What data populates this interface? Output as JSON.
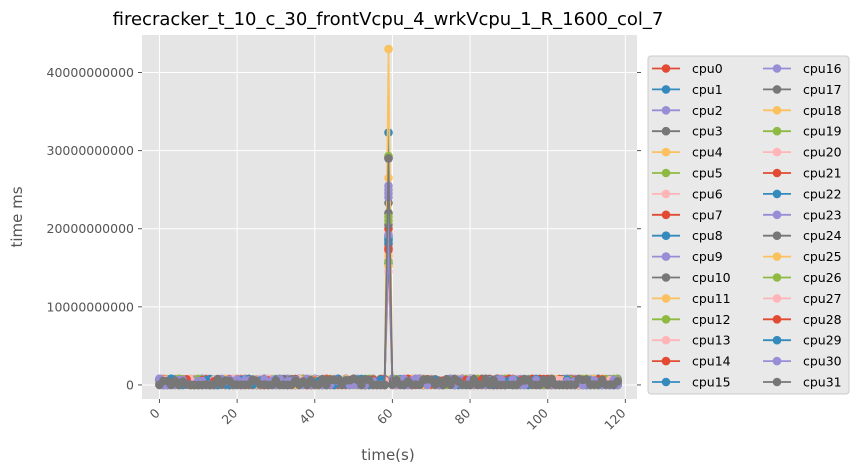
{
  "chart_data": {
    "type": "line",
    "title": "firecracker_t_10_c_30_frontVcpu_4_wrkVcpu_1_R_1600_col_7",
    "xlabel": "time(s)",
    "ylabel": "time ms",
    "xlim": [
      -4.5,
      123
    ],
    "ylim": [
      -1800000000,
      44800000000
    ],
    "x_ticks": [
      0,
      20,
      40,
      60,
      80,
      100,
      120
    ],
    "x_tick_labels": [
      "0",
      "20",
      "40",
      "60",
      "80",
      "100",
      "120"
    ],
    "y_ticks": [
      0,
      10000000000,
      20000000000,
      30000000000,
      40000000000
    ],
    "y_tick_labels": [
      "0",
      "10000000000",
      "20000000000",
      "30000000000",
      "40000000000"
    ],
    "x_tick_rotation": 45,
    "grid": true,
    "legend_position": "outside-right",
    "legend_columns": 2,
    "spike_x": 59,
    "x_range": [
      0,
      118
    ],
    "baseline_level_max": 800000000,
    "colors": [
      "#E24A33",
      "#348ABD",
      "#988ED5",
      "#777777",
      "#FBC15E",
      "#8EBA42",
      "#FFB5B8"
    ],
    "series": [
      {
        "name": "cpu0",
        "spike": 29000000000
      },
      {
        "name": "cpu1",
        "spike": 32300000000
      },
      {
        "name": "cpu2",
        "spike": 25000000000
      },
      {
        "name": "cpu3",
        "spike": 23300000000
      },
      {
        "name": "cpu4",
        "spike": 43000000000
      },
      {
        "name": "cpu5",
        "spike": 29300000000
      },
      {
        "name": "cpu6",
        "spike": 19500000000
      },
      {
        "name": "cpu7",
        "spike": 20000000000
      },
      {
        "name": "cpu8",
        "spike": 18500000000
      },
      {
        "name": "cpu9",
        "spike": 25500000000
      },
      {
        "name": "cpu10",
        "spike": 22000000000
      },
      {
        "name": "cpu11",
        "spike": 26500000000
      },
      {
        "name": "cpu12",
        "spike": 21500000000
      },
      {
        "name": "cpu13",
        "spike": 17000000000
      },
      {
        "name": "cpu14",
        "spike": 17500000000
      },
      {
        "name": "cpu15",
        "spike": 19000000000
      },
      {
        "name": "cpu16",
        "spike": 24500000000
      },
      {
        "name": "cpu17",
        "spike": 20500000000
      },
      {
        "name": "cpu18",
        "spike": 16500000000
      },
      {
        "name": "cpu19",
        "spike": 21000000000
      },
      {
        "name": "cpu20",
        "spike": 16000000000
      },
      {
        "name": "cpu21",
        "spike": 18000000000
      },
      {
        "name": "cpu22",
        "spike": 18700000000
      },
      {
        "name": "cpu23",
        "spike": 24000000000
      },
      {
        "name": "cpu24",
        "spike": 15500000000
      },
      {
        "name": "cpu25",
        "spike": 15200000000
      },
      {
        "name": "cpu26",
        "spike": 15800000000
      },
      {
        "name": "cpu27",
        "spike": 14500000000
      },
      {
        "name": "cpu28",
        "spike": 17300000000
      },
      {
        "name": "cpu29",
        "spike": 18200000000
      },
      {
        "name": "cpu30",
        "spike": 19200000000
      },
      {
        "name": "cpu31",
        "spike": 29000000000
      }
    ]
  }
}
